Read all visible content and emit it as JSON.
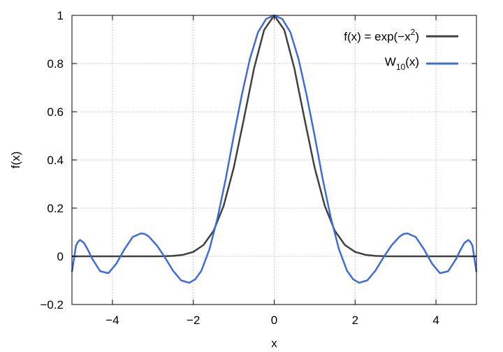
{
  "chart_data": {
    "type": "line",
    "title": "",
    "xlabel": "x",
    "ylabel": "f(x)",
    "xlim": [
      -5,
      5
    ],
    "ylim": [
      -0.2,
      1
    ],
    "xticks": [
      -4,
      -2,
      0,
      2,
      4
    ],
    "xtick_labels": [
      "−4",
      "−2",
      "0",
      "2",
      "4"
    ],
    "yticks": [
      -0.2,
      0,
      0.2,
      0.4,
      0.6,
      0.8,
      1
    ],
    "ytick_labels": [
      "−0.2",
      "0",
      "0.2",
      "0.4",
      "0.6",
      "0.8",
      "1"
    ],
    "grid": true,
    "legend_position": "top-right",
    "series": [
      {
        "legend_text": "f(x) = exp(−x",
        "legend_sup": "2",
        "legend_tail": ")",
        "color": "#404040",
        "x": [
          -5,
          -4.5,
          -4,
          -3.5,
          -3,
          -2.75,
          -2.5,
          -2.25,
          -2,
          -1.75,
          -1.5,
          -1.25,
          -1,
          -0.75,
          -0.5,
          -0.25,
          0,
          0.25,
          0.5,
          0.75,
          1,
          1.25,
          1.5,
          1.75,
          2,
          2.25,
          2.5,
          2.75,
          3,
          3.5,
          4,
          4.5,
          5
        ],
        "y": [
          0,
          0,
          0,
          0,
          0.0001,
          0.0005,
          0.0019,
          0.0063,
          0.0183,
          0.0468,
          0.1054,
          0.2096,
          0.3679,
          0.5698,
          0.7788,
          0.9394,
          1,
          0.9394,
          0.7788,
          0.5698,
          0.3679,
          0.2096,
          0.1054,
          0.0468,
          0.0183,
          0.0063,
          0.0019,
          0.0005,
          0.0001,
          0,
          0,
          0,
          0
        ]
      },
      {
        "legend_text": "W",
        "legend_sub": "10",
        "legend_tail": "(x)",
        "color": "#3f6bd6",
        "x": [
          -5,
          -4.95,
          -4.9,
          -4.85,
          -4.8,
          -4.7,
          -4.6,
          -4.5,
          -4.3,
          -4.1,
          -3.9,
          -3.7,
          -3.5,
          -3.3,
          -3.2,
          -3.1,
          -2.9,
          -2.7,
          -2.5,
          -2.3,
          -2.1,
          -1.95,
          -1.8,
          -1.6,
          -1.4,
          -1.2,
          -1.0,
          -0.8,
          -0.6,
          -0.4,
          -0.2,
          0,
          0.2,
          0.4,
          0.6,
          0.8,
          1.0,
          1.2,
          1.4,
          1.6,
          1.8,
          1.95,
          2.1,
          2.3,
          2.5,
          2.7,
          2.9,
          3.1,
          3.2,
          3.3,
          3.5,
          3.7,
          3.9,
          4.1,
          4.3,
          4.5,
          4.6,
          4.7,
          4.8,
          4.85,
          4.9,
          4.95,
          5
        ],
        "y": [
          -0.065,
          -0.01,
          0.045,
          0.06,
          0.068,
          0.055,
          0.025,
          -0.01,
          -0.062,
          -0.07,
          -0.03,
          0.03,
          0.08,
          0.095,
          0.093,
          0.082,
          0.045,
          -0.005,
          -0.06,
          -0.1,
          -0.11,
          -0.095,
          -0.06,
          0.03,
          0.16,
          0.32,
          0.5,
          0.67,
          0.82,
          0.93,
          0.985,
          1,
          0.985,
          0.93,
          0.82,
          0.67,
          0.5,
          0.32,
          0.16,
          0.03,
          -0.06,
          -0.095,
          -0.11,
          -0.1,
          -0.06,
          -0.005,
          0.045,
          0.082,
          0.093,
          0.095,
          0.08,
          0.03,
          -0.03,
          -0.07,
          -0.062,
          -0.01,
          0.025,
          0.055,
          0.068,
          0.06,
          0.045,
          -0.01,
          -0.065
        ]
      }
    ]
  }
}
